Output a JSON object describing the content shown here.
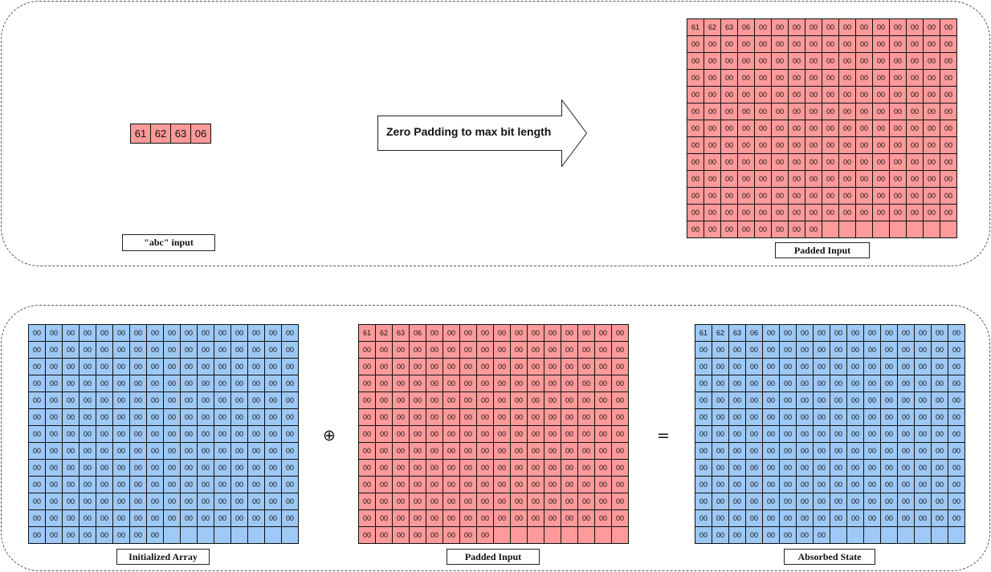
{
  "input": {
    "bytes": [
      "61",
      "62",
      "63",
      "06"
    ],
    "label": "\"abc\" input"
  },
  "arrow": {
    "label": "Zero Padding to max bit length"
  },
  "operators": {
    "xor": "⊕",
    "equals": "="
  },
  "grids": {
    "padded_top": {
      "label": "Padded Input",
      "color": "#ff9a9a",
      "rows": 13,
      "cols": 16,
      "filled_cells": 200,
      "first_bytes": [
        "61",
        "62",
        "63",
        "06"
      ],
      "fill": "00"
    },
    "initialized": {
      "label": "Initialized Array",
      "color": "#9ec9f6",
      "rows": 13,
      "cols": 16,
      "filled_cells": 200,
      "first_bytes": [],
      "fill": "00"
    },
    "padded": {
      "label": "Padded Input",
      "color": "#ff9a9a",
      "rows": 13,
      "cols": 16,
      "filled_cells": 200,
      "first_bytes": [
        "61",
        "62",
        "63",
        "06"
      ],
      "fill": "00"
    },
    "absorbed": {
      "label": "Absorbed State",
      "color": "#9ec9f6",
      "rows": 13,
      "cols": 16,
      "filled_cells": 200,
      "first_bytes": [
        "61",
        "62",
        "63",
        "06"
      ],
      "fill": "00"
    }
  }
}
